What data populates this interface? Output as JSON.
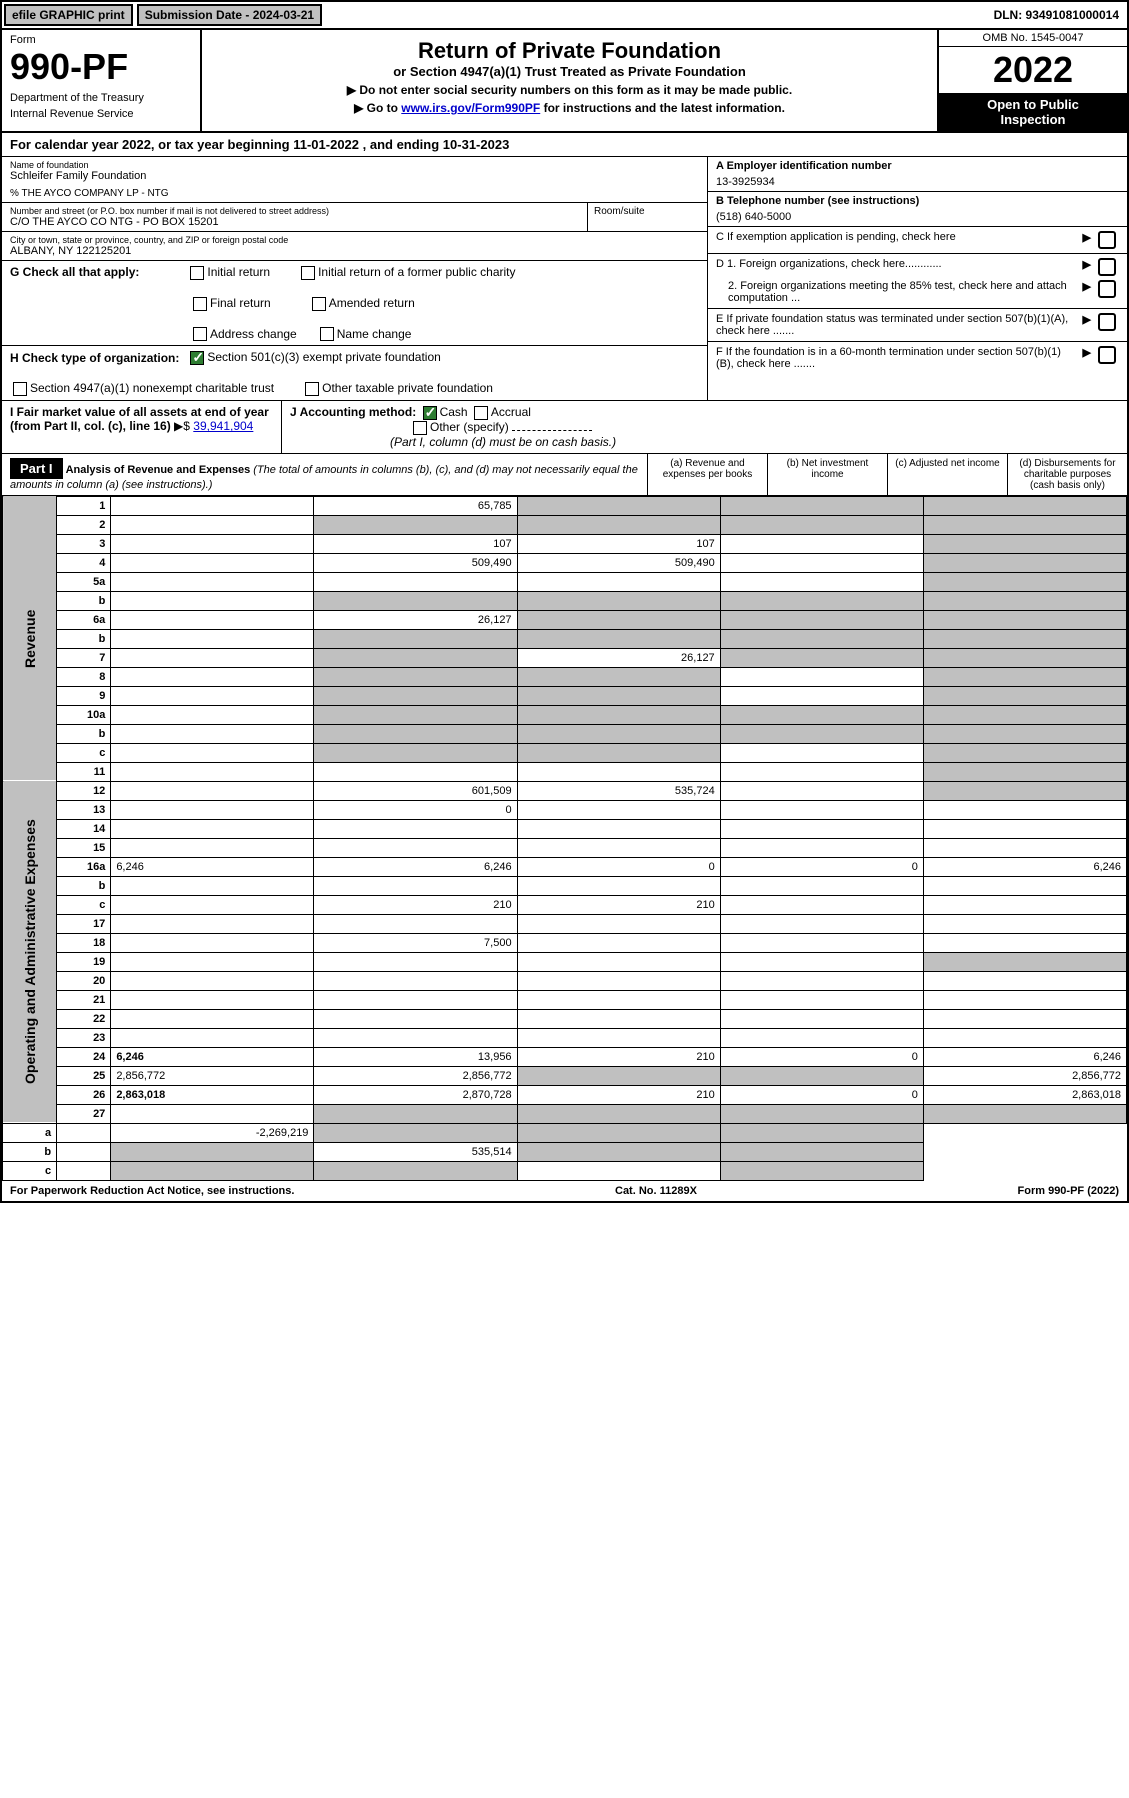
{
  "top": {
    "efile_btn": "efile GRAPHIC print",
    "sub_date_label": "Submission Date - 2024-03-21",
    "dln": "DLN: 93491081000014"
  },
  "header": {
    "form_label": "Form",
    "form_num": "990-PF",
    "dept1": "Department of the Treasury",
    "dept2": "Internal Revenue Service",
    "title": "Return of Private Foundation",
    "subtitle": "or Section 4947(a)(1) Trust Treated as Private Foundation",
    "note1": "▶ Do not enter social security numbers on this form as it may be made public.",
    "note2_pre": "▶ Go to ",
    "note2_link": "www.irs.gov/Form990PF",
    "note2_post": " for instructions and the latest information.",
    "omb": "OMB No. 1545-0047",
    "year": "2022",
    "open1": "Open to Public",
    "open2": "Inspection"
  },
  "cal_year": {
    "pre": "For calendar year 2022, or tax year beginning ",
    "begin": "11-01-2022",
    "mid": " , and ending ",
    "end": "10-31-2023"
  },
  "name_block": {
    "label": "Name of foundation",
    "name": "Schleifer Family Foundation",
    "care_of": "% THE AYCO COMPANY LP - NTG",
    "addr_label": "Number and street (or P.O. box number if mail is not delivered to street address)",
    "addr": "C/O THE AYCO CO NTG - PO BOX 15201",
    "room_label": "Room/suite",
    "city_label": "City or town, state or province, country, and ZIP or foreign postal code",
    "city": "ALBANY, NY  122125201"
  },
  "right_info": {
    "a_label": "A Employer identification number",
    "a_val": "13-3925934",
    "b_label": "B Telephone number (see instructions)",
    "b_val": "(518) 640-5000",
    "c_label": "C If exemption application is pending, check here",
    "d1_label": "D 1. Foreign organizations, check here............",
    "d2_label": "2. Foreign organizations meeting the 85% test, check here and attach computation ...",
    "e_label": "E  If private foundation status was terminated under section 507(b)(1)(A), check here .......",
    "f_label": "F  If the foundation is in a 60-month termination under section 507(b)(1)(B), check here .......",
    "arrow": "▶"
  },
  "g": {
    "label": "G Check all that apply:",
    "opts": [
      "Initial return",
      "Final return",
      "Address change",
      "Initial return of a former public charity",
      "Amended return",
      "Name change"
    ]
  },
  "h": {
    "label": "H Check type of organization:",
    "opt1": "Section 501(c)(3) exempt private foundation",
    "opt2": "Section 4947(a)(1) nonexempt charitable trust",
    "opt3": "Other taxable private foundation"
  },
  "i": {
    "label": "I Fair market value of all assets at end of year (from Part II, col. (c), line 16)",
    "arrow": "▶$",
    "val": "39,941,904"
  },
  "j": {
    "label": "J Accounting method:",
    "cash": "Cash",
    "accrual": "Accrual",
    "other": "Other (specify)",
    "note": "(Part I, column (d) must be on cash basis.)"
  },
  "part1": {
    "label": "Part I",
    "title": "Analysis of Revenue and Expenses",
    "title_note": " (The total of amounts in columns (b), (c), and (d) may not necessarily equal the amounts in column (a) (see instructions).)",
    "col_a": "(a)   Revenue and expenses per books",
    "col_b": "(b)   Net investment income",
    "col_c": "(c)   Adjusted net income",
    "col_d": "(d)   Disbursements for charitable purposes (cash basis only)"
  },
  "side_labels": {
    "revenue": "Revenue",
    "expenses": "Operating and Administrative Expenses"
  },
  "lines": [
    {
      "n": "1",
      "d": "",
      "a": "65,785",
      "b": "",
      "c": "",
      "grey": [
        "b",
        "c",
        "d"
      ]
    },
    {
      "n": "2",
      "d": "",
      "a": "",
      "b": "",
      "c": "",
      "grey": [
        "a",
        "b",
        "c",
        "d"
      ]
    },
    {
      "n": "3",
      "d": "",
      "a": "107",
      "b": "107",
      "c": "",
      "grey": [
        "d"
      ]
    },
    {
      "n": "4",
      "d": "",
      "a": "509,490",
      "b": "509,490",
      "c": "",
      "grey": [
        "d"
      ]
    },
    {
      "n": "5a",
      "d": "",
      "a": "",
      "b": "",
      "c": "",
      "grey": [
        "d"
      ]
    },
    {
      "n": "b",
      "d": "",
      "a": "",
      "b": "",
      "c": "",
      "grey": [
        "a",
        "b",
        "c",
        "d"
      ]
    },
    {
      "n": "6a",
      "d": "",
      "a": "26,127",
      "b": "",
      "c": "",
      "grey": [
        "b",
        "c",
        "d"
      ]
    },
    {
      "n": "b",
      "d": "",
      "a": "",
      "b": "",
      "c": "",
      "grey": [
        "a",
        "b",
        "c",
        "d"
      ]
    },
    {
      "n": "7",
      "d": "",
      "a": "",
      "b": "26,127",
      "c": "",
      "grey": [
        "a",
        "c",
        "d"
      ]
    },
    {
      "n": "8",
      "d": "",
      "a": "",
      "b": "",
      "c": "",
      "grey": [
        "a",
        "b",
        "d"
      ]
    },
    {
      "n": "9",
      "d": "",
      "a": "",
      "b": "",
      "c": "",
      "grey": [
        "a",
        "b",
        "d"
      ]
    },
    {
      "n": "10a",
      "d": "",
      "a": "",
      "b": "",
      "c": "",
      "grey": [
        "a",
        "b",
        "c",
        "d"
      ]
    },
    {
      "n": "b",
      "d": "",
      "a": "",
      "b": "",
      "c": "",
      "grey": [
        "a",
        "b",
        "c",
        "d"
      ]
    },
    {
      "n": "c",
      "d": "",
      "a": "",
      "b": "",
      "c": "",
      "grey": [
        "a",
        "b",
        "d"
      ]
    },
    {
      "n": "11",
      "d": "",
      "a": "",
      "b": "",
      "c": "",
      "grey": [
        "d"
      ]
    },
    {
      "n": "12",
      "d": "",
      "a": "601,509",
      "b": "535,724",
      "c": "",
      "grey": [
        "d"
      ],
      "bold": true
    },
    {
      "n": "13",
      "d": "",
      "a": "0",
      "b": "",
      "c": ""
    },
    {
      "n": "14",
      "d": "",
      "a": "",
      "b": "",
      "c": ""
    },
    {
      "n": "15",
      "d": "",
      "a": "",
      "b": "",
      "c": ""
    },
    {
      "n": "16a",
      "d": "6,246",
      "a": "6,246",
      "b": "0",
      "c": "0"
    },
    {
      "n": "b",
      "d": "",
      "a": "",
      "b": "",
      "c": ""
    },
    {
      "n": "c",
      "d": "",
      "a": "210",
      "b": "210",
      "c": ""
    },
    {
      "n": "17",
      "d": "",
      "a": "",
      "b": "",
      "c": ""
    },
    {
      "n": "18",
      "d": "",
      "a": "7,500",
      "b": "",
      "c": ""
    },
    {
      "n": "19",
      "d": "",
      "a": "",
      "b": "",
      "c": "",
      "grey": [
        "d"
      ]
    },
    {
      "n": "20",
      "d": "",
      "a": "",
      "b": "",
      "c": ""
    },
    {
      "n": "21",
      "d": "",
      "a": "",
      "b": "",
      "c": ""
    },
    {
      "n": "22",
      "d": "",
      "a": "",
      "b": "",
      "c": ""
    },
    {
      "n": "23",
      "d": "",
      "a": "",
      "b": "",
      "c": ""
    },
    {
      "n": "24",
      "d": "6,246",
      "a": "13,956",
      "b": "210",
      "c": "0",
      "bold": true
    },
    {
      "n": "25",
      "d": "2,856,772",
      "a": "2,856,772",
      "b": "",
      "c": "",
      "grey": [
        "b",
        "c"
      ]
    },
    {
      "n": "26",
      "d": "2,863,018",
      "a": "2,870,728",
      "b": "210",
      "c": "0",
      "bold": true
    },
    {
      "n": "27",
      "d": "",
      "a": "",
      "b": "",
      "c": "",
      "grey": [
        "a",
        "b",
        "c",
        "d"
      ]
    },
    {
      "n": "a",
      "d": "",
      "a": "-2,269,219",
      "b": "",
      "c": "",
      "grey": [
        "b",
        "c",
        "d"
      ],
      "bold": true
    },
    {
      "n": "b",
      "d": "",
      "a": "",
      "b": "535,514",
      "c": "",
      "grey": [
        "a",
        "c",
        "d"
      ],
      "bold": true
    },
    {
      "n": "c",
      "d": "",
      "a": "",
      "b": "",
      "c": "",
      "grey": [
        "a",
        "b",
        "d"
      ],
      "bold": true
    }
  ],
  "footer": {
    "left": "For Paperwork Reduction Act Notice, see instructions.",
    "mid": "Cat. No. 11289X",
    "right": "Form 990-PF (2022)"
  },
  "colors": {
    "bg": "#ffffff",
    "border": "#000000",
    "grey_fill": "#c0c0c0",
    "black_fill": "#000000",
    "link": "#0000cc",
    "check_green": "#2e7d32"
  }
}
